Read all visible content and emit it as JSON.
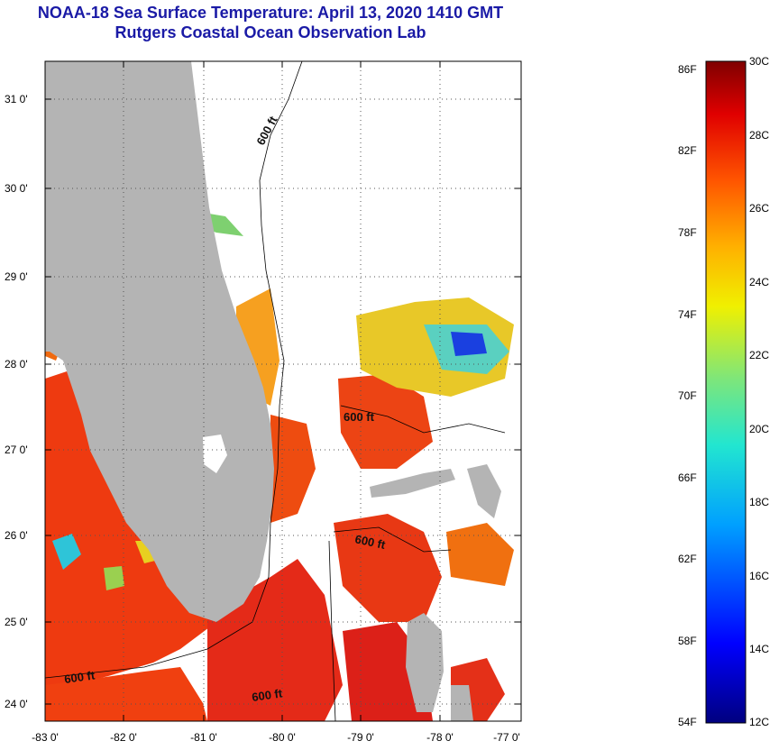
{
  "title": "NOAA-18 Sea Surface Temperature:  April 13, 2020 1410 GMT",
  "subtitle": "Rutgers Coastal Ocean Observation Lab",
  "map": {
    "lon_ticks": [
      "-83 0'",
      "-82 0'",
      "-81 0'",
      "-80 0'",
      "-79 0'",
      "-78 0'",
      "-77 0'"
    ],
    "lat_ticks": [
      "24 0'",
      "25 0'",
      "26 0'",
      "27 0'",
      "28 0'",
      "29 0'",
      "30 0'",
      "31 0'"
    ],
    "contour_labels": [
      "600 ft",
      "600 ft",
      "600 ft",
      "600 ft",
      "600 ft"
    ],
    "colors": {
      "land": "#b4b4b4",
      "no_data": "#ffffff"
    }
  },
  "colorbar": {
    "f_labels": [
      "86F",
      "82F",
      "78F",
      "74F",
      "70F",
      "66F",
      "62F",
      "58F",
      "54F"
    ],
    "c_labels": [
      "30C",
      "28C",
      "26C",
      "24C",
      "22C",
      "20C",
      "18C",
      "16C",
      "14C",
      "12C"
    ]
  }
}
